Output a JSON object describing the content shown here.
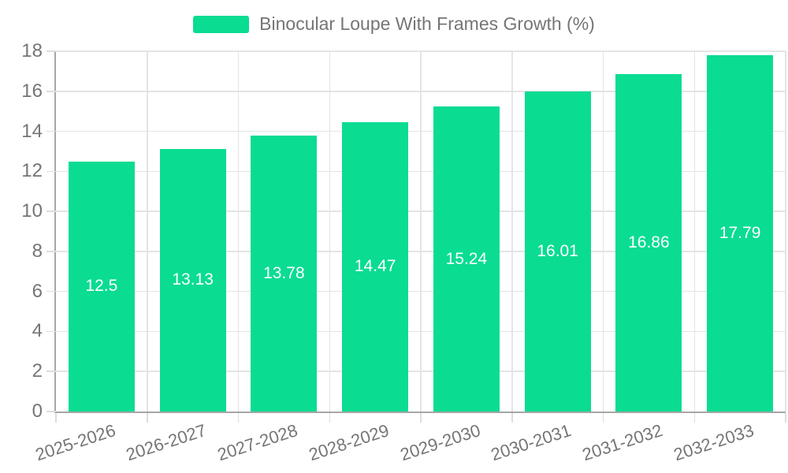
{
  "chart_data": {
    "type": "bar",
    "title": "Binocular Loupe With Frames Growth (%)",
    "legend": {
      "label": "Binocular Loupe With Frames Growth (%)",
      "position": "top"
    },
    "categories": [
      "2025-2026",
      "2026-2027",
      "2027-2028",
      "2028-2029",
      "2029-2030",
      "2030-2031",
      "2031-2032",
      "2032-2033"
    ],
    "series": [
      {
        "name": "Binocular Loupe With Frames Growth (%)",
        "values": [
          12.5,
          13.13,
          13.78,
          14.47,
          15.24,
          16.01,
          16.86,
          17.79
        ],
        "value_labels": [
          "12.5",
          "13.13",
          "13.78",
          "14.47",
          "15.24",
          "16.01",
          "16.86",
          "17.79"
        ]
      }
    ],
    "xlabel": "",
    "ylabel": "",
    "ylim": [
      0,
      18
    ],
    "yticks": [
      0,
      2,
      4,
      6,
      8,
      10,
      12,
      14,
      16,
      18
    ],
    "grid": "horizontal-and-vertical",
    "x_label_rotation_deg": -18,
    "colors": {
      "bar": "#0adc92",
      "bar_value_text": "#ffffff",
      "axis_text": "#757575",
      "legend_text": "#757575",
      "grid_line": "#e4e4e4",
      "axis_line": "#a6a6a6",
      "background": "#ffffff"
    }
  }
}
